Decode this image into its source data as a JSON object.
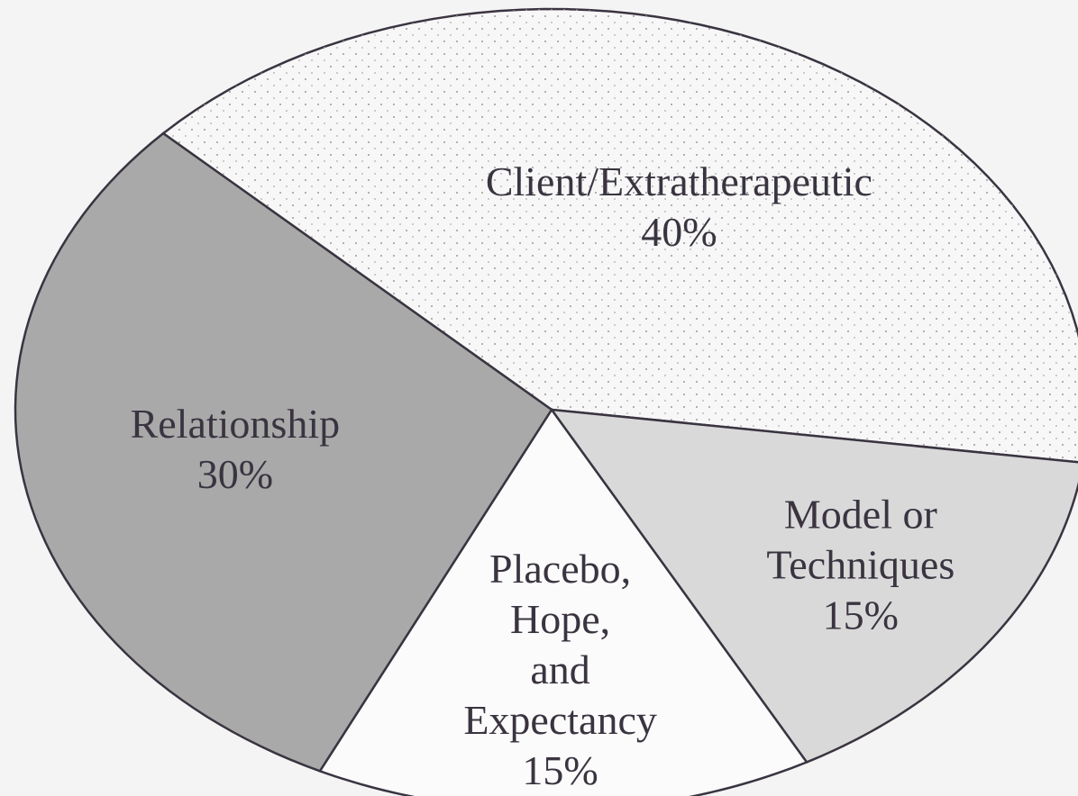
{
  "chart_data": {
    "type": "pie",
    "categories": [
      [
        "Client/Extratherapeutic"
      ],
      [
        "Model or",
        "Techniques"
      ],
      [
        "Placebo,",
        "Hope,",
        "and",
        "Expectancy"
      ],
      [
        "Relationship"
      ]
    ],
    "values": [
      40,
      15,
      15,
      30
    ],
    "value_labels": [
      "40%",
      "15%",
      "15%",
      "30%"
    ],
    "colors": [
      "#f7f7f7",
      "#d9d9d9",
      "#fbfbfb",
      "#a9a9a9"
    ]
  }
}
